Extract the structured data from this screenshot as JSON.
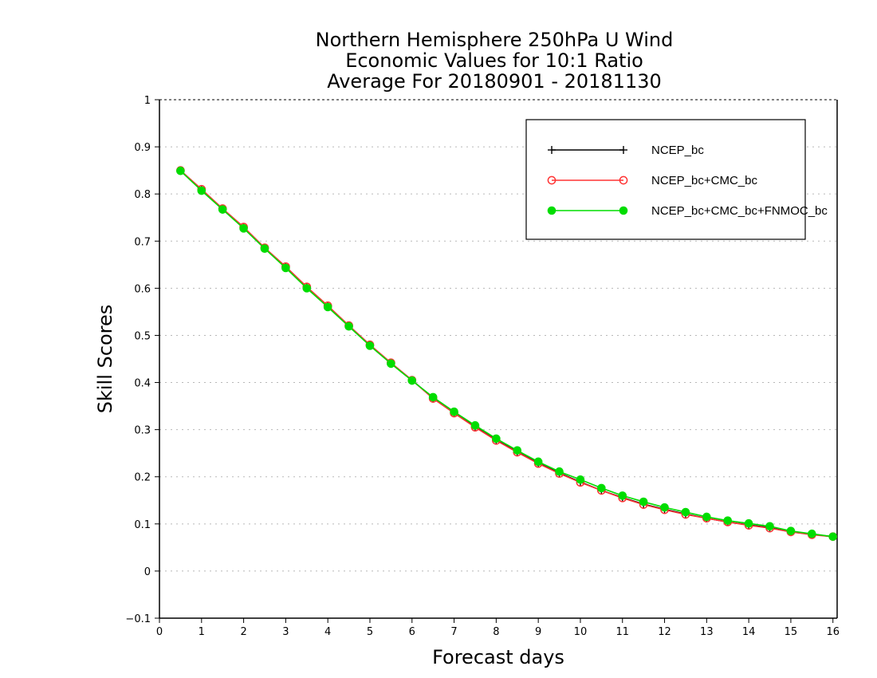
{
  "chart_data": {
    "type": "line",
    "title": [
      "Northern Hemisphere 250hPa U Wind",
      "Economic Values for 10:1 Ratio",
      "Average For 20180901 - 20181130"
    ],
    "xlabel": "Forecast days",
    "ylabel": "Skill Scores",
    "xlim": [
      0,
      16.1
    ],
    "ylim": [
      -0.1,
      1
    ],
    "xticks": [
      0,
      1,
      2,
      3,
      4,
      5,
      6,
      7,
      8,
      9,
      10,
      11,
      12,
      13,
      14,
      15,
      16
    ],
    "yticks": [
      -0.1,
      0,
      0.1,
      0.2,
      0.3,
      0.4,
      0.5,
      0.6,
      0.7,
      0.8,
      0.9,
      1
    ],
    "ytick_labels": [
      "−0.1",
      "0",
      "0.1",
      "0.2",
      "0.3",
      "0.4",
      "0.5",
      "0.6",
      "0.7",
      "0.8",
      "0.9",
      "1"
    ],
    "grid": true,
    "legend_position": "top-right",
    "x": [
      0.5,
      1.0,
      1.5,
      2.0,
      2.5,
      3.0,
      3.5,
      4.0,
      4.5,
      5.0,
      5.5,
      6.0,
      6.5,
      7.0,
      7.5,
      8.0,
      8.5,
      9.0,
      9.5,
      10.0,
      10.5,
      11.0,
      11.5,
      12.0,
      12.5,
      13.0,
      13.5,
      14.0,
      14.5,
      15.0,
      15.5,
      16.0
    ],
    "series": [
      {
        "name": "NCEP_bc",
        "color": "#000000",
        "marker": "plus",
        "values": [
          0.849,
          0.809,
          0.768,
          0.729,
          0.685,
          0.645,
          0.602,
          0.562,
          0.52,
          0.479,
          0.441,
          0.405,
          0.367,
          0.336,
          0.306,
          0.278,
          0.253,
          0.229,
          0.208,
          0.189,
          0.171,
          0.156,
          0.142,
          0.131,
          0.121,
          0.112,
          0.104,
          0.098,
          0.092,
          0.083,
          0.078,
          0.073
        ]
      },
      {
        "name": "NCEP_bc+CMC_bc",
        "color": "#ff3333",
        "marker": "open-circle",
        "values": [
          0.85,
          0.81,
          0.769,
          0.73,
          0.686,
          0.646,
          0.603,
          0.563,
          0.521,
          0.48,
          0.442,
          0.405,
          0.366,
          0.335,
          0.305,
          0.277,
          0.252,
          0.228,
          0.207,
          0.188,
          0.171,
          0.155,
          0.141,
          0.13,
          0.12,
          0.112,
          0.104,
          0.097,
          0.091,
          0.083,
          0.077,
          0.073
        ]
      },
      {
        "name": "NCEP_bc+CMC_bc+FNMOC_bc",
        "color": "#00dd00",
        "marker": "filled-circle",
        "values": [
          0.849,
          0.807,
          0.767,
          0.727,
          0.684,
          0.643,
          0.6,
          0.56,
          0.519,
          0.478,
          0.44,
          0.404,
          0.369,
          0.338,
          0.309,
          0.281,
          0.256,
          0.232,
          0.211,
          0.194,
          0.176,
          0.16,
          0.147,
          0.135,
          0.125,
          0.115,
          0.107,
          0.101,
          0.095,
          0.085,
          0.079,
          0.073
        ]
      }
    ]
  }
}
